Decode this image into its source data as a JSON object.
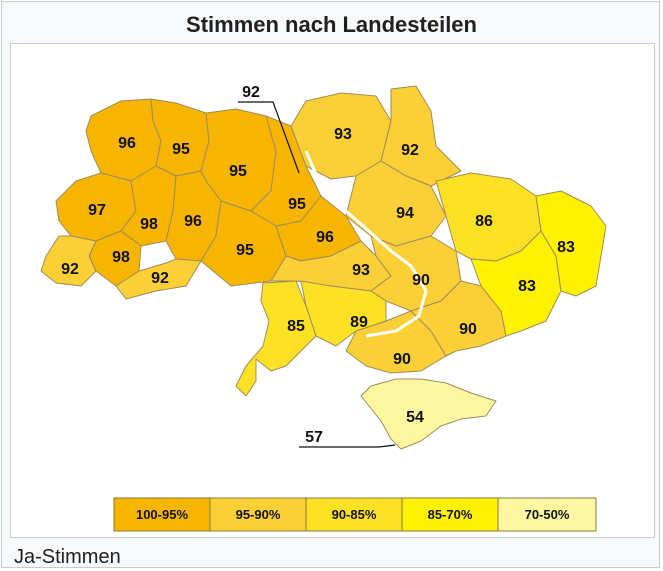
{
  "title": "Stimmen nach Landesteilen",
  "caption": "Ja-Stimmen",
  "colors": {
    "100-95": "#f7b500",
    "95-90": "#fad036",
    "90-85": "#fde124",
    "85-70": "#fef200",
    "70-50": "#fdf7a2",
    "border": "#9a8a5a",
    "water": "#ffffff"
  },
  "legend": [
    {
      "label": "100-95%",
      "color": "#f7b500"
    },
    {
      "label": "95-90%",
      "color": "#fad036"
    },
    {
      "label": "90-85%",
      "color": "#fde124"
    },
    {
      "label": "85-70%",
      "color": "#fef200"
    },
    {
      "label": "70-50%",
      "color": "#fdf7a2"
    }
  ],
  "regions": [
    {
      "id": "volyn",
      "value": "96"
    },
    {
      "id": "rivne",
      "value": "95"
    },
    {
      "id": "zhytomyr",
      "value": "95"
    },
    {
      "id": "kyiv-city",
      "value": "92"
    },
    {
      "id": "chernihiv",
      "value": "93"
    },
    {
      "id": "sumy",
      "value": "92"
    },
    {
      "id": "lviv",
      "value": "97"
    },
    {
      "id": "ternopil",
      "value": "98"
    },
    {
      "id": "khmelnytskyi",
      "value": "96"
    },
    {
      "id": "kyiv-oblast",
      "value": "95"
    },
    {
      "id": "poltava",
      "value": "94"
    },
    {
      "id": "kharkiv",
      "value": "86"
    },
    {
      "id": "luhansk",
      "value": "83"
    },
    {
      "id": "vinnytsia",
      "value": "95"
    },
    {
      "id": "cherkasy",
      "value": "96"
    },
    {
      "id": "zakarpattia",
      "value": "92"
    },
    {
      "id": "ivano-frankivsk",
      "value": "98"
    },
    {
      "id": "chernivtsi",
      "value": "92"
    },
    {
      "id": "kirovohrad",
      "value": "93"
    },
    {
      "id": "dnipropetrovsk",
      "value": "90"
    },
    {
      "id": "donetsk",
      "value": "83"
    },
    {
      "id": "odesa",
      "value": "85"
    },
    {
      "id": "mykolaiv",
      "value": "89"
    },
    {
      "id": "zaporizhzhia",
      "value": "90"
    },
    {
      "id": "kherson",
      "value": "90"
    },
    {
      "id": "crimea",
      "value": "54"
    },
    {
      "id": "sevastopol",
      "value": "57"
    }
  ]
}
